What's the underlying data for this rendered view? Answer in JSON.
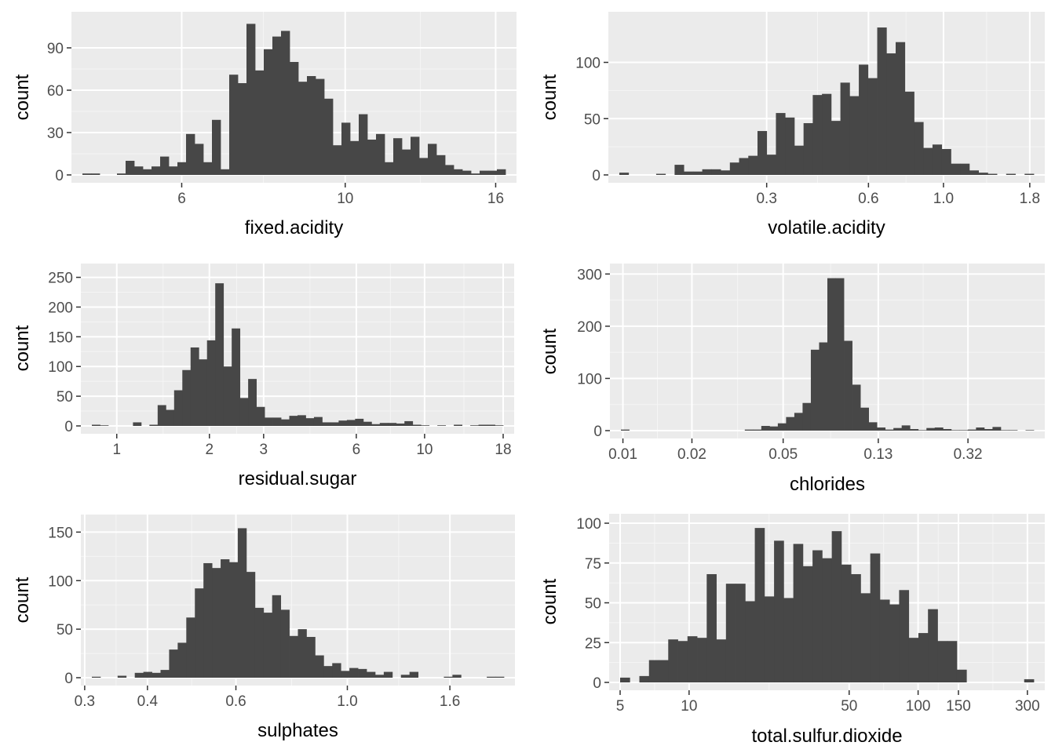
{
  "colors": {
    "panel_background": "#ebebeb",
    "grid_major": "#ffffff",
    "grid_minor": "#f5f5f5",
    "bar_fill": "#474747",
    "tick_text": "#4d4d4d",
    "axis_title": "#000000"
  },
  "chart_data": [
    {
      "type": "bar",
      "subtype": "histogram",
      "xlabel": "fixed.acidity",
      "ylabel": "count",
      "x_scale": "log10",
      "xlim": [
        4.4,
        16.5
      ],
      "ylim": [
        0,
        110
      ],
      "x_ticks": [
        "6",
        "10",
        "16"
      ],
      "x_tick_values": [
        6,
        10,
        16
      ],
      "y_ticks": [
        "0",
        "30",
        "60",
        "90"
      ],
      "y_tick_values": [
        0,
        30,
        60,
        90
      ],
      "grid": true,
      "counts": [
        1,
        1,
        0,
        0,
        1,
        10,
        6,
        4,
        6,
        13,
        6,
        9,
        29,
        22,
        9,
        39,
        4,
        71,
        65,
        107,
        74,
        89,
        98,
        102,
        80,
        66,
        70,
        68,
        54,
        21,
        37,
        24,
        43,
        25,
        29,
        9,
        26,
        18,
        27,
        12,
        22,
        14,
        7,
        4,
        3,
        1,
        3,
        3,
        4
      ]
    },
    {
      "type": "bar",
      "subtype": "histogram",
      "xlabel": "volatile.acidity",
      "ylabel": "count",
      "x_scale": "log10",
      "xlim": [
        0.11,
        1.85
      ],
      "ylim": [
        0,
        138
      ],
      "x_ticks": [
        "0.3",
        "0.6",
        "1.0",
        "1.8"
      ],
      "x_tick_values": [
        0.3,
        0.6,
        1.0,
        1.8
      ],
      "y_ticks": [
        "0",
        "50",
        "100"
      ],
      "y_tick_values": [
        0,
        50,
        100
      ],
      "grid": true,
      "counts": [
        2,
        0,
        0,
        0,
        1,
        0,
        9,
        3,
        3,
        5,
        5,
        4,
        11,
        15,
        17,
        39,
        18,
        55,
        51,
        26,
        46,
        71,
        72,
        48,
        82,
        70,
        98,
        86,
        131,
        108,
        118,
        74,
        47,
        24,
        27,
        23,
        10,
        10,
        4,
        2,
        1,
        0,
        1,
        0,
        1
      ]
    },
    {
      "type": "bar",
      "subtype": "histogram",
      "xlabel": "residual.sugar",
      "ylabel": "count",
      "x_scale": "log10",
      "xlim": [
        0.83,
        18.0
      ],
      "ylim": [
        0,
        260
      ],
      "x_ticks": [
        "1",
        "2",
        "3",
        "6",
        "10",
        "18"
      ],
      "x_tick_values": [
        1,
        2,
        3,
        6,
        10,
        18
      ],
      "y_ticks": [
        "0",
        "50",
        "100",
        "150",
        "200",
        "250"
      ],
      "y_tick_values": [
        0,
        50,
        100,
        150,
        200,
        250
      ],
      "grid": true,
      "counts": [
        2,
        1,
        0,
        0,
        0,
        6,
        0,
        2,
        35,
        27,
        60,
        94,
        132,
        112,
        144,
        240,
        100,
        164,
        47,
        79,
        32,
        14,
        14,
        11,
        17,
        18,
        13,
        15,
        6,
        6,
        9,
        10,
        12,
        7,
        3,
        5,
        5,
        4,
        8,
        2,
        1,
        0,
        1,
        0,
        2,
        0,
        1,
        2,
        2,
        1
      ]
    },
    {
      "type": "bar",
      "subtype": "histogram",
      "xlabel": "chlorides",
      "ylabel": "count",
      "x_scale": "log10",
      "xlim": [
        0.0098,
        0.62
      ],
      "ylim": [
        0,
        305
      ],
      "x_ticks": [
        "0.01",
        "0.02",
        "0.05",
        "0.13",
        "0.32"
      ],
      "x_tick_values": [
        0.01,
        0.02,
        0.05,
        0.13,
        0.32
      ],
      "y_ticks": [
        "0",
        "100",
        "200",
        "300"
      ],
      "y_tick_values": [
        0,
        100,
        200,
        300
      ],
      "grid": true,
      "counts": [
        2,
        0,
        0,
        0,
        0,
        0,
        0,
        0,
        0,
        0,
        0,
        0,
        0,
        0,
        0,
        2,
        2,
        9,
        8,
        14,
        26,
        34,
        53,
        155,
        169,
        292,
        292,
        172,
        88,
        44,
        16,
        6,
        2,
        5,
        10,
        3,
        1,
        5,
        6,
        3,
        1,
        1,
        2,
        6,
        3,
        7,
        1,
        1,
        0,
        1
      ]
    },
    {
      "type": "bar",
      "subtype": "histogram",
      "xlabel": "sulphates",
      "ylabel": "count",
      "x_scale": "log10",
      "xlim": [
        0.31,
        2.05
      ],
      "ylim": [
        0,
        160
      ],
      "x_ticks": [
        "0.3",
        "0.4",
        "0.6",
        "1.0",
        "1.6"
      ],
      "x_tick_values": [
        0.3,
        0.4,
        0.6,
        1.0,
        1.6
      ],
      "y_ticks": [
        "0",
        "50",
        "100",
        "150"
      ],
      "y_tick_values": [
        0,
        50,
        100,
        150
      ],
      "grid": true,
      "counts": [
        1,
        0,
        0,
        2,
        0,
        5,
        6,
        5,
        8,
        29,
        36,
        62,
        92,
        118,
        113,
        122,
        119,
        154,
        109,
        72,
        67,
        85,
        70,
        43,
        50,
        42,
        23,
        12,
        15,
        7,
        10,
        9,
        6,
        3,
        6,
        0,
        3,
        6,
        0,
        0,
        0,
        1,
        3,
        0,
        0,
        0,
        1,
        1
      ]
    },
    {
      "type": "bar",
      "subtype": "histogram",
      "xlabel": "total.sulfur.dioxide",
      "ylabel": "count",
      "x_scale": "log10",
      "xlim": [
        5.0,
        320
      ],
      "ylim": [
        0,
        101
      ],
      "x_ticks": [
        "5",
        "10",
        "50",
        "100",
        "150",
        "300"
      ],
      "x_tick_values": [
        5,
        10,
        50,
        100,
        150,
        300
      ],
      "y_ticks": [
        "0",
        "25",
        "50",
        "75",
        "100"
      ],
      "y_tick_values": [
        0,
        25,
        50,
        75,
        100
      ],
      "grid": true,
      "counts": [
        3,
        0,
        4,
        14,
        14,
        27,
        26,
        29,
        28,
        68,
        27,
        62,
        62,
        51,
        97,
        54,
        89,
        53,
        87,
        73,
        83,
        78,
        95,
        74,
        68,
        56,
        81,
        52,
        49,
        58,
        28,
        31,
        46,
        26,
        26,
        8,
        0,
        0,
        0,
        0,
        0,
        0,
        2
      ]
    }
  ]
}
